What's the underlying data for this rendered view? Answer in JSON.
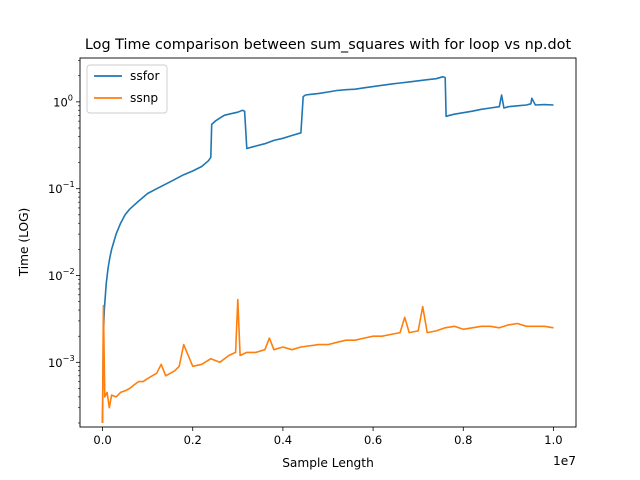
{
  "chart_data": {
    "type": "line",
    "title": "Log Time comparison between sum_squares with for loop vs np.dot",
    "xlabel": "Sample Length",
    "ylabel": "Time (LOG)",
    "x_offset_label": "1e7",
    "xlim": [
      -500000,
      10500000
    ],
    "ylim": [
      0.00018,
      3.2
    ],
    "yscale": "log",
    "x_ticks": [
      0,
      2000000,
      4000000,
      6000000,
      8000000,
      10000000
    ],
    "x_tick_labels": [
      "0.0",
      "0.2",
      "0.4",
      "0.6",
      "0.8",
      "1.0"
    ],
    "y_ticks": [
      0.001,
      0.01,
      0.1,
      1
    ],
    "y_tick_labels": [
      "10",
      "10",
      "10",
      "10"
    ],
    "y_tick_exponents": [
      "−3",
      "−2",
      "−1",
      "0"
    ],
    "grid": false,
    "legend_position": "upper left",
    "series": [
      {
        "name": "ssfor",
        "color": "#1f77b4",
        "x": [
          0,
          20000,
          40000,
          80000,
          120000,
          160000,
          200000,
          300000,
          400000,
          500000,
          600000,
          800000,
          1000000,
          1200000,
          1500000,
          1800000,
          2000000,
          2200000,
          2350000,
          2400000,
          2420000,
          2500000,
          2600000,
          2700000,
          2800000,
          2900000,
          3000000,
          3100000,
          3150000,
          3200000,
          3400000,
          3600000,
          3800000,
          4000000,
          4200000,
          4400000,
          4450000,
          4500000,
          4600000,
          4800000,
          5000000,
          5200000,
          5400000,
          5600000,
          5800000,
          6000000,
          6200000,
          6400000,
          6600000,
          6800000,
          7000000,
          7200000,
          7400000,
          7550000,
          7600000,
          7620000,
          7700000,
          7800000,
          8000000,
          8200000,
          8400000,
          8600000,
          8800000,
          8850000,
          8900000,
          9000000,
          9200000,
          9400000,
          9500000,
          9520000,
          9600000,
          9800000,
          10000000
        ],
        "y": [
          0.0002,
          0.002,
          0.004,
          0.008,
          0.012,
          0.016,
          0.02,
          0.03,
          0.04,
          0.05,
          0.058,
          0.072,
          0.088,
          0.1,
          0.12,
          0.145,
          0.16,
          0.18,
          0.21,
          0.23,
          0.55,
          0.6,
          0.65,
          0.7,
          0.72,
          0.74,
          0.76,
          0.8,
          0.78,
          0.29,
          0.31,
          0.33,
          0.36,
          0.38,
          0.41,
          0.44,
          1.15,
          1.2,
          1.22,
          1.25,
          1.3,
          1.35,
          1.38,
          1.4,
          1.45,
          1.5,
          1.55,
          1.6,
          1.65,
          1.7,
          1.75,
          1.8,
          1.85,
          1.95,
          1.9,
          0.68,
          0.7,
          0.72,
          0.75,
          0.78,
          0.82,
          0.85,
          0.88,
          1.2,
          0.85,
          0.88,
          0.9,
          0.92,
          0.95,
          1.1,
          0.92,
          0.93,
          0.92
        ]
      },
      {
        "name": "ssnp",
        "color": "#ff7f0e",
        "x": [
          0,
          20000,
          50000,
          100000,
          150000,
          200000,
          300000,
          400000,
          500000,
          600000,
          700000,
          800000,
          900000,
          1000000,
          1200000,
          1300000,
          1400000,
          1600000,
          1700000,
          1800000,
          2000000,
          2200000,
          2400000,
          2600000,
          2800000,
          2950000,
          3000000,
          3050000,
          3200000,
          3400000,
          3600000,
          3700000,
          3800000,
          4000000,
          4200000,
          4400000,
          4800000,
          5000000,
          5200000,
          5400000,
          5600000,
          5800000,
          6000000,
          6200000,
          6400000,
          6600000,
          6700000,
          6800000,
          7000000,
          7100000,
          7200000,
          7400000,
          7600000,
          7800000,
          8000000,
          8200000,
          8400000,
          8600000,
          8800000,
          9000000,
          9200000,
          9400000,
          9600000,
          9800000,
          10000000
        ],
        "y": [
          0.0002,
          0.0045,
          0.0004,
          0.00045,
          0.0003,
          0.00042,
          0.0004,
          0.00045,
          0.00047,
          0.0005,
          0.00055,
          0.0006,
          0.0006,
          0.00065,
          0.00075,
          0.00095,
          0.0007,
          0.0008,
          0.0009,
          0.0016,
          0.0009,
          0.00095,
          0.0011,
          0.001,
          0.0012,
          0.0013,
          0.0053,
          0.0012,
          0.0013,
          0.0013,
          0.0014,
          0.0019,
          0.0014,
          0.0015,
          0.0014,
          0.0015,
          0.0016,
          0.0016,
          0.0017,
          0.0018,
          0.0018,
          0.0019,
          0.002,
          0.002,
          0.0021,
          0.0022,
          0.0033,
          0.0022,
          0.0023,
          0.0044,
          0.0022,
          0.0023,
          0.0025,
          0.0026,
          0.0024,
          0.0025,
          0.0026,
          0.0026,
          0.0025,
          0.0027,
          0.0028,
          0.0026,
          0.0026,
          0.0026,
          0.0025
        ]
      }
    ]
  }
}
